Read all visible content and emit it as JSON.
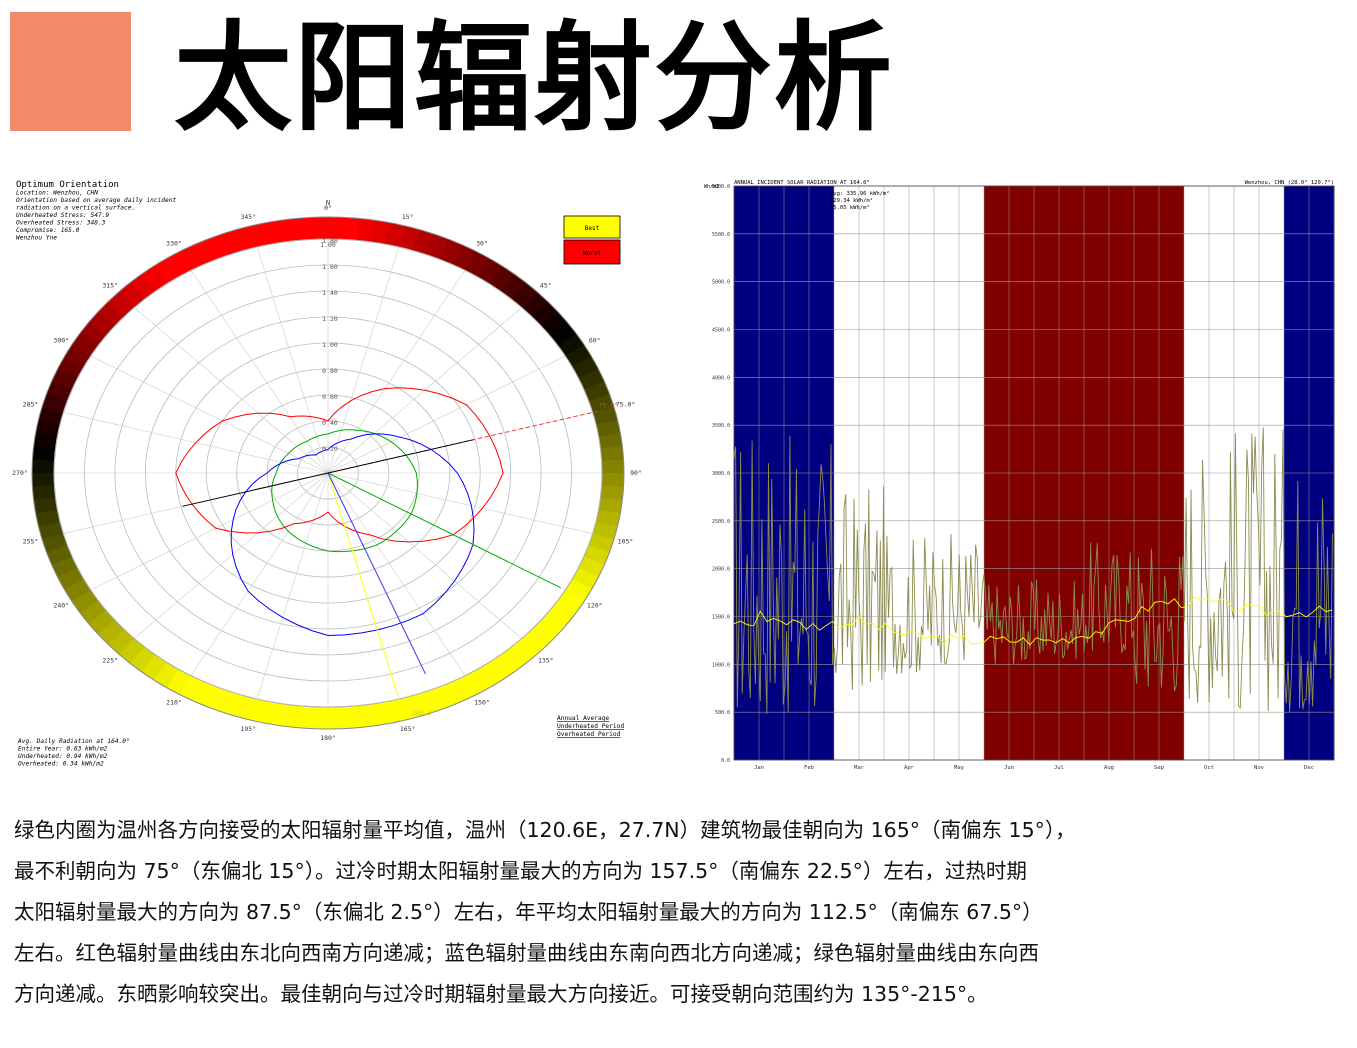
{
  "page": {
    "title": "太阳辐射分析",
    "accent_color": "#F28B6A"
  },
  "polar": {
    "header_lines": [
      "Optimum Orientation",
      "Location: Wenzhou, CHN",
      "Orientation based on average daily incident",
      "radiation on a vertical surface.",
      "Underheated Stress: 547.9",
      "Overheated Stress: 348.3",
      "Compromise: 165.0",
      "Wenzhou Yne"
    ],
    "legend_best": "Best",
    "legend_worst": "Worst",
    "north_label": "N",
    "radial_ticks": [
      "1.80",
      "1.60",
      "1.40",
      "1.20",
      "1.00",
      "0.80",
      "0.60",
      "0.40",
      "0.20"
    ],
    "outer_value_label": "1.00",
    "angle_labels": [
      {
        "deg": 0,
        "label": "0°"
      },
      {
        "deg": 15,
        "label": "15°"
      },
      {
        "deg": 30,
        "label": "30°"
      },
      {
        "deg": 45,
        "label": "45°"
      },
      {
        "deg": 60,
        "label": "60°"
      },
      {
        "deg": 75,
        "label": "75.0°"
      },
      {
        "deg": 90,
        "label": "90°"
      },
      {
        "deg": 105,
        "label": "105°"
      },
      {
        "deg": 120,
        "label": "120°"
      },
      {
        "deg": 135,
        "label": "135°"
      },
      {
        "deg": 150,
        "label": "150°"
      },
      {
        "deg": 165,
        "label": "165°"
      },
      {
        "deg": 180,
        "label": "180°"
      },
      {
        "deg": 195,
        "label": "195°"
      },
      {
        "deg": 210,
        "label": "210°"
      },
      {
        "deg": 225,
        "label": "225°"
      },
      {
        "deg": 240,
        "label": "240°"
      },
      {
        "deg": 255,
        "label": "255°"
      },
      {
        "deg": 270,
        "label": "270°"
      },
      {
        "deg": 285,
        "label": "285°"
      },
      {
        "deg": 300,
        "label": "300°"
      },
      {
        "deg": 315,
        "label": "315°"
      },
      {
        "deg": 330,
        "label": "330°"
      },
      {
        "deg": 345,
        "label": "345°"
      }
    ],
    "optimum_label": "165.0°",
    "footer_lines": [
      "Avg. Daily Radiation at 164.0°",
      "Entire Year: 0.63 kWh/m2",
      "Underheated: 0.94 kWh/m2",
      "Overheated: 0.34 kWh/m2"
    ],
    "series_legend": [
      "Annual Average",
      "Underheated Period",
      "Overheated Period"
    ],
    "colors": {
      "annual": "#FFFF00",
      "underheated": "#0000FF",
      "overheated": "#FF0000",
      "green": "#00AA00"
    }
  },
  "radiation": {
    "header_left": "ANNUAL INCIDENT SOLAR RADIATION AT 164.0°",
    "header_right": "Wenzhou, CHN (28.0° 120.7°)",
    "stats_lines": [
      "Avg: 335.96 kWh/m²",
      "129.34 kWh/m²",
      "75.05 kWh/m²"
    ],
    "unit_label": "Wh/m2",
    "colors": {
      "winter": "#000080",
      "summer": "#800000",
      "line": "#8C8C50",
      "avg": "#FFFF00"
    }
  },
  "chart_data": [
    {
      "type": "polar",
      "title": "Optimum Orientation",
      "radial_range": [
        0,
        1.8
      ],
      "compromise_angle": 165.0,
      "worst_angle": 75.0,
      "series": [
        {
          "name": "Annual Average",
          "angles": [
            0,
            30,
            60,
            90,
            120,
            150,
            180,
            210,
            240,
            270,
            300,
            330
          ],
          "values": [
            0.3,
            0.38,
            0.48,
            0.58,
            0.63,
            0.64,
            0.6,
            0.52,
            0.42,
            0.34,
            0.3,
            0.28
          ]
        },
        {
          "name": "Underheated Period",
          "angles": [
            0,
            30,
            60,
            90,
            120,
            150,
            180,
            210,
            240,
            270,
            300,
            330
          ],
          "values": [
            0.18,
            0.3,
            0.55,
            0.85,
            1.1,
            1.25,
            1.25,
            1.05,
            0.72,
            0.4,
            0.22,
            0.16
          ]
        },
        {
          "name": "Overheated Period",
          "angles": [
            0,
            30,
            60,
            90,
            120,
            150,
            180,
            210,
            240,
            270,
            300,
            330
          ],
          "values": [
            0.4,
            0.75,
            1.05,
            1.15,
            0.95,
            0.55,
            0.3,
            0.45,
            0.85,
            1.0,
            0.8,
            0.5
          ]
        }
      ]
    },
    {
      "type": "bar",
      "title": "ANNUAL INCIDENT SOLAR RADIATION AT 164.0°",
      "x_categories": [
        "Jan",
        "Feb",
        "Mar",
        "Apr",
        "May",
        "Jun",
        "Jul",
        "Aug",
        "Sep",
        "Oct",
        "Nov",
        "Dec"
      ],
      "y_ticks": [
        "0.0",
        "500.0",
        "1000.0",
        "1500.0",
        "2000.0",
        "2500.0",
        "3000.0",
        "3500.0",
        "4000.0",
        "4500.0",
        "5000.0",
        "5500.0",
        "6000.0"
      ],
      "ylim": [
        0,
        6000
      ],
      "underheated_months": [
        "Jan",
        "Feb",
        "Dec"
      ],
      "overheated_months": [
        "Jun",
        "Jul",
        "Aug",
        "Sep"
      ],
      "monthly_average": [
        1520,
        1400,
        1450,
        1300,
        1250,
        1250,
        1250,
        1380,
        1650,
        1650,
        1550,
        1550
      ],
      "monthly_peak": [
        3600,
        3400,
        2900,
        2400,
        2400,
        1900,
        1900,
        2300,
        2400,
        3400,
        3600,
        3300
      ],
      "monthly_min": [
        450,
        450,
        700,
        900,
        1000,
        1000,
        1050,
        1100,
        700,
        600,
        500,
        500
      ]
    }
  ],
  "caption": {
    "lines": [
      "绿色内圈为温州各方向接受的太阳辐射量平均值，温州（120.6E，27.7N）建筑物最佳朝向为 165°（南偏东 15°），",
      "最不利朝向为 75°（东偏北 15°）。过冷时期太阳辐射量最大的方向为 157.5°（南偏东 22.5°）左右，过热时期",
      "太阳辐射量最大的方向为 87.5°（东偏北 2.5°）左右，年平均太阳辐射量最大的方向为 112.5°（南偏东 67.5°）",
      "左右。红色辐射量曲线由东北向西南方向递减；蓝色辐射量曲线由东南向西北方向递减；绿色辐射量曲线由东向西",
      "方向递减。东晒影响较突出。最佳朝向与过冷时期辐射量最大方向接近。可接受朝向范围约为 135°-215°。"
    ]
  }
}
